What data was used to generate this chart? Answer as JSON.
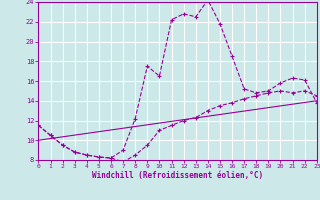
{
  "xlabel": "Windchill (Refroidissement éolien,°C)",
  "bg_color": "#cce8e8",
  "grid_color": "#ffffff",
  "line_color": "#990099",
  "xmin": 0,
  "xmax": 23,
  "ymin": 8,
  "ymax": 24,
  "yticks": [
    8,
    10,
    12,
    14,
    16,
    18,
    20,
    22,
    24
  ],
  "xticks": [
    0,
    1,
    2,
    3,
    4,
    5,
    6,
    7,
    8,
    9,
    10,
    11,
    12,
    13,
    14,
    15,
    16,
    17,
    18,
    19,
    20,
    21,
    22,
    23
  ],
  "series1_x": [
    0,
    1,
    2,
    3,
    4,
    5,
    6,
    7,
    8,
    9,
    10,
    11,
    12,
    13,
    14,
    15,
    16,
    17,
    18,
    19,
    20,
    21,
    22,
    23
  ],
  "series1_y": [
    11.5,
    10.5,
    9.5,
    8.8,
    8.5,
    8.3,
    8.2,
    9.0,
    12.2,
    17.5,
    16.5,
    22.2,
    22.8,
    22.5,
    24.2,
    21.8,
    18.5,
    15.2,
    14.8,
    15.0,
    15.8,
    16.3,
    16.1,
    13.8
  ],
  "series2_x": [
    0,
    1,
    2,
    3,
    4,
    5,
    6,
    7,
    8,
    9,
    10,
    11,
    12,
    13,
    14,
    15,
    16,
    17,
    18,
    19,
    20,
    21,
    22,
    23
  ],
  "series2_y": [
    11.5,
    10.5,
    9.5,
    8.8,
    8.5,
    8.3,
    8.2,
    7.8,
    8.5,
    9.5,
    11.0,
    11.5,
    12.0,
    12.3,
    13.0,
    13.5,
    13.8,
    14.2,
    14.5,
    14.8,
    15.0,
    14.8,
    15.0,
    14.5
  ],
  "series3_x": [
    0,
    23
  ],
  "series3_y": [
    10.0,
    14.0
  ]
}
